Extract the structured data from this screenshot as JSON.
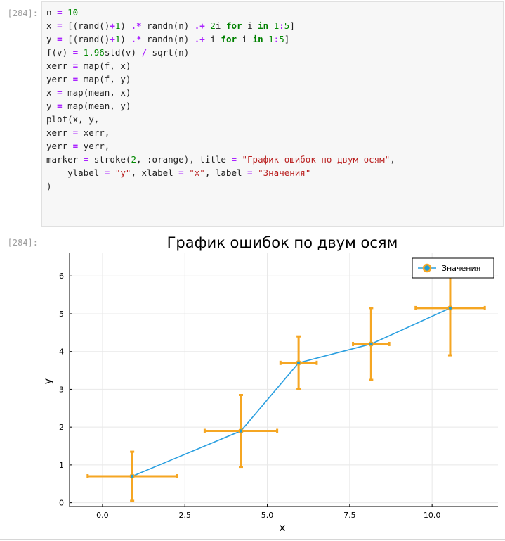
{
  "cell": {
    "in_prompt": "[284]:",
    "out_prompt": "[284]:"
  },
  "code_lines": [
    [
      {
        "t": "n "
      },
      {
        "t": "=",
        "c": "op"
      },
      {
        "t": " "
      },
      {
        "t": "10",
        "c": "num"
      }
    ],
    [
      {
        "t": "x "
      },
      {
        "t": "=",
        "c": "op"
      },
      {
        "t": " [(rand()"
      },
      {
        "t": "+",
        "c": "op"
      },
      {
        "t": "1",
        "c": "num"
      },
      {
        "t": ") "
      },
      {
        "t": ".*",
        "c": "op"
      },
      {
        "t": " randn(n) "
      },
      {
        "t": ".+",
        "c": "op"
      },
      {
        "t": " "
      },
      {
        "t": "2",
        "c": "num"
      },
      {
        "t": "i "
      },
      {
        "t": "for",
        "c": "kw"
      },
      {
        "t": " i "
      },
      {
        "t": "in",
        "c": "kw"
      },
      {
        "t": " "
      },
      {
        "t": "1",
        "c": "num"
      },
      {
        "t": ":",
        "c": "op"
      },
      {
        "t": "5",
        "c": "num"
      },
      {
        "t": "]"
      }
    ],
    [
      {
        "t": "y "
      },
      {
        "t": "=",
        "c": "op"
      },
      {
        "t": " [(rand()"
      },
      {
        "t": "+",
        "c": "op"
      },
      {
        "t": "1",
        "c": "num"
      },
      {
        "t": ") "
      },
      {
        "t": ".*",
        "c": "op"
      },
      {
        "t": " randn(n) "
      },
      {
        "t": ".+",
        "c": "op"
      },
      {
        "t": " i "
      },
      {
        "t": "for",
        "c": "kw"
      },
      {
        "t": " i "
      },
      {
        "t": "in",
        "c": "kw"
      },
      {
        "t": " "
      },
      {
        "t": "1",
        "c": "num"
      },
      {
        "t": ":",
        "c": "op"
      },
      {
        "t": "5",
        "c": "num"
      },
      {
        "t": "]"
      }
    ],
    [
      {
        "t": "f(v) "
      },
      {
        "t": "=",
        "c": "op"
      },
      {
        "t": " "
      },
      {
        "t": "1.96",
        "c": "num"
      },
      {
        "t": "std(v) "
      },
      {
        "t": "/",
        "c": "op"
      },
      {
        "t": " sqrt(n)"
      }
    ],
    [
      {
        "t": "xerr "
      },
      {
        "t": "=",
        "c": "op"
      },
      {
        "t": " map(f, x)"
      }
    ],
    [
      {
        "t": "yerr "
      },
      {
        "t": "=",
        "c": "op"
      },
      {
        "t": " map(f, y)"
      }
    ],
    [
      {
        "t": "x "
      },
      {
        "t": "=",
        "c": "op"
      },
      {
        "t": " map(mean, x)"
      }
    ],
    [
      {
        "t": "y "
      },
      {
        "t": "=",
        "c": "op"
      },
      {
        "t": " map(mean, y)"
      }
    ],
    [
      {
        "t": "plot(x, y,"
      }
    ],
    [
      {
        "t": "xerr "
      },
      {
        "t": "=",
        "c": "op"
      },
      {
        "t": " xerr,"
      }
    ],
    [
      {
        "t": "yerr "
      },
      {
        "t": "=",
        "c": "op"
      },
      {
        "t": " yerr,"
      }
    ],
    [
      {
        "t": "marker "
      },
      {
        "t": "=",
        "c": "op"
      },
      {
        "t": " stroke("
      },
      {
        "t": "2",
        "c": "num"
      },
      {
        "t": ", :orange), title "
      },
      {
        "t": "=",
        "c": "op"
      },
      {
        "t": " "
      },
      {
        "t": "\"График ошибок по двум осям\"",
        "c": "str"
      },
      {
        "t": ","
      }
    ],
    [
      {
        "t": "    ylabel "
      },
      {
        "t": "=",
        "c": "op"
      },
      {
        "t": " "
      },
      {
        "t": "\"y\"",
        "c": "str"
      },
      {
        "t": ", xlabel "
      },
      {
        "t": "=",
        "c": "op"
      },
      {
        "t": " "
      },
      {
        "t": "\"x\"",
        "c": "str"
      },
      {
        "t": ", label "
      },
      {
        "t": "=",
        "c": "op"
      },
      {
        "t": " "
      },
      {
        "t": "\"Значения\"",
        "c": "str"
      }
    ],
    [
      {
        "t": ")"
      }
    ]
  ],
  "colors": {
    "line": "#2a9fe0",
    "error_bar": "#f5a623",
    "marker_fill": "#1f9ed6"
  },
  "chart_data": {
    "type": "scatter",
    "title": "График ошибок по двум осям",
    "xlabel": "x",
    "ylabel": "y",
    "xlim": [
      -1.0,
      12.0
    ],
    "ylim": [
      -0.1,
      6.6
    ],
    "xticks": [
      "0.0",
      "2.5",
      "5.0",
      "7.5",
      "10.0"
    ],
    "xtick_values": [
      0,
      2.5,
      5,
      7.5,
      10
    ],
    "yticks": [
      "0",
      "1",
      "2",
      "3",
      "4",
      "5",
      "6"
    ],
    "ytick_values": [
      0,
      1,
      2,
      3,
      4,
      5,
      6
    ],
    "grid": true,
    "legend_position": "top-right",
    "series": [
      {
        "name": "Значения",
        "x": [
          0.9,
          4.2,
          5.95,
          8.15,
          10.55
        ],
        "y": [
          0.7,
          1.9,
          3.7,
          4.2,
          5.15
        ],
        "xerr": [
          1.35,
          1.1,
          0.55,
          0.55,
          1.05
        ],
        "yerr": [
          0.65,
          0.95,
          0.7,
          0.95,
          1.25
        ]
      }
    ]
  }
}
